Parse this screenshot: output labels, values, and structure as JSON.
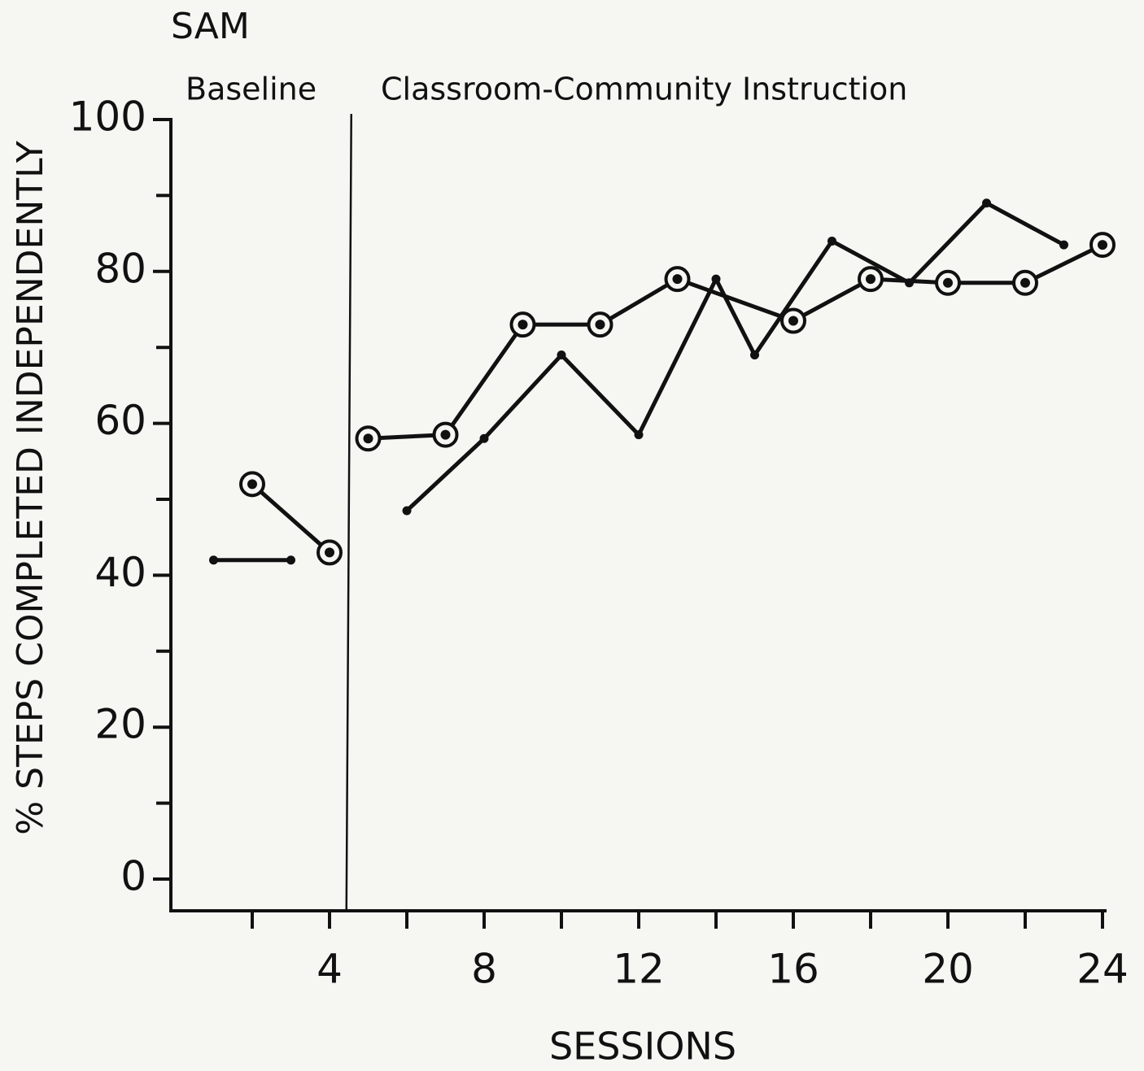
{
  "chart_data": {
    "type": "line",
    "title": "SAM",
    "phase_labels": [
      "Baseline",
      "Classroom-Community Instruction"
    ],
    "phase_line": 4.5,
    "y_label": "% STEPS COMPLETED INDEPENDENTLY",
    "x_label": "SESSIONS",
    "xlim": [
      0,
      24
    ],
    "xticks": [
      4,
      8,
      12,
      16,
      20,
      24
    ],
    "xminor_ticks": [
      2,
      6,
      10,
      14,
      18,
      22
    ],
    "ylim": [
      0,
      100
    ],
    "yticks": [
      0,
      20,
      40,
      60,
      80,
      100
    ],
    "yminor_ticks": [
      10,
      30,
      50,
      70,
      90
    ],
    "series": [
      {
        "marker": "dot",
        "color": "#111111",
        "x": [
          1,
          3,
          null,
          6,
          8,
          10,
          12,
          14,
          15,
          17,
          19,
          21,
          23
        ],
        "values": [
          42,
          42,
          null,
          48.5,
          58,
          69,
          58.5,
          79,
          69,
          84,
          78.5,
          89,
          83.5
        ]
      },
      {
        "marker": "circle",
        "color": "#111111",
        "x": [
          2,
          4,
          null,
          5,
          7,
          9,
          11,
          13,
          16,
          18,
          20,
          22,
          24
        ],
        "values": [
          52,
          43,
          null,
          58,
          58.5,
          73,
          73,
          79,
          73.5,
          79,
          78.5,
          78.5,
          83.5
        ]
      }
    ]
  }
}
